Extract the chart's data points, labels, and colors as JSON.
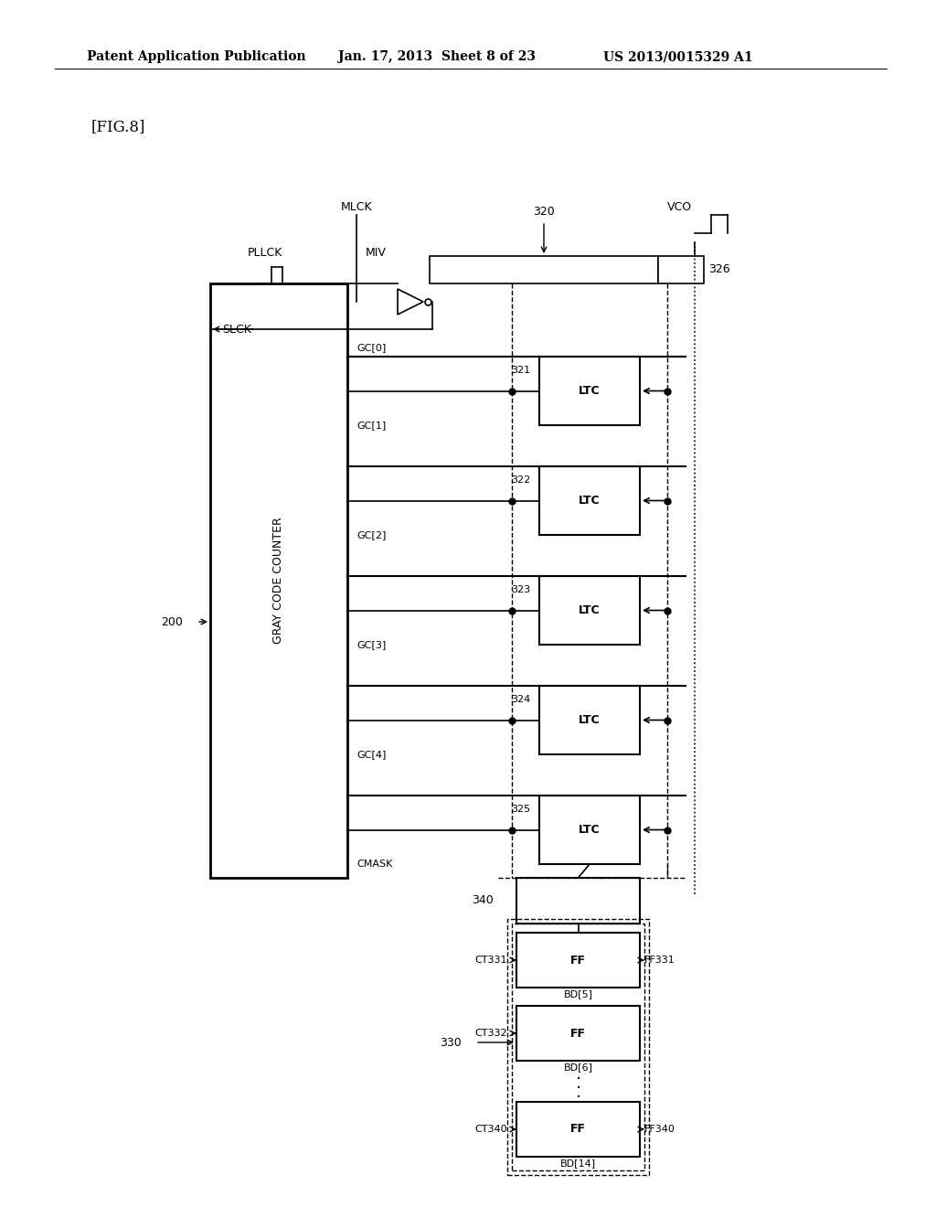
{
  "bg_color": "#ffffff",
  "header_text1": "Patent Application Publication",
  "header_text2": "Jan. 17, 2013  Sheet 8 of 23",
  "header_text3": "US 2013/0015329 A1",
  "fig_label": "[FIG.8]",
  "title_fontsize": 10,
  "body_fontsize": 9,
  "small_fontsize": 8
}
